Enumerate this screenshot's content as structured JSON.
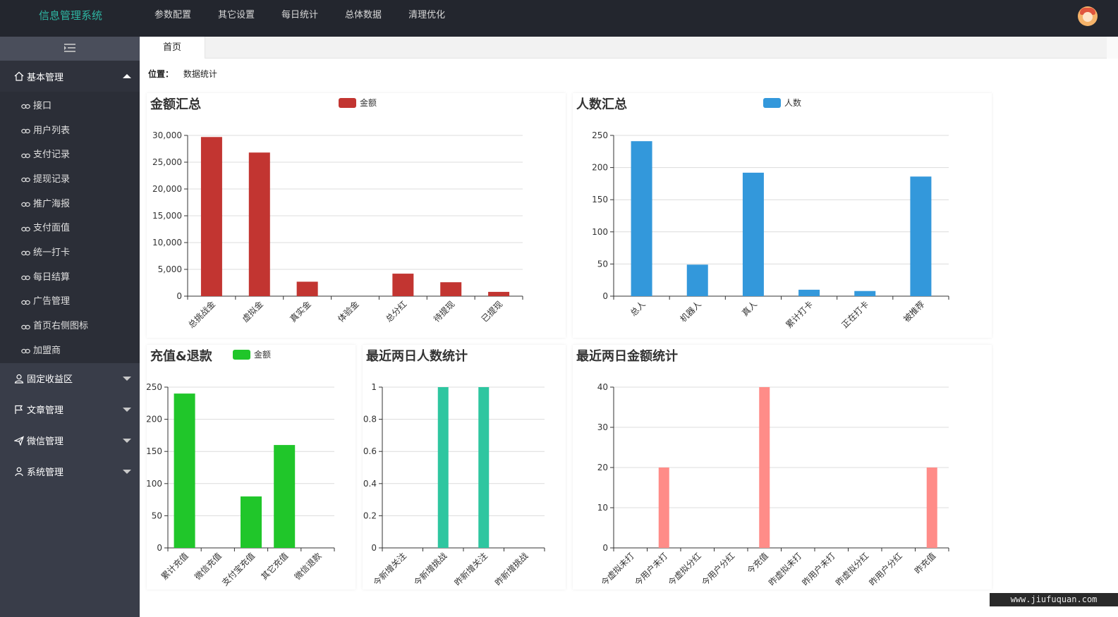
{
  "app": {
    "brand": "信息管理系统"
  },
  "topnav": [
    "参数配置",
    "其它设置",
    "每日统计",
    "总体数据",
    "清理优化"
  ],
  "sidebar": {
    "groups": [
      {
        "label": "基本管理",
        "icon": "home-icon",
        "open": true,
        "items": [
          "接口",
          "用户列表",
          "支付记录",
          "提现记录",
          "推广海报",
          "支付面值",
          "统一打卡",
          "每日结算",
          "广告管理",
          "首页右侧图标",
          "加盟商"
        ]
      },
      {
        "label": "固定收益区",
        "icon": "user-icon",
        "open": false,
        "items": []
      },
      {
        "label": "文章管理",
        "icon": "flag-icon",
        "open": false,
        "items": []
      },
      {
        "label": "微信管理",
        "icon": "send-icon",
        "open": false,
        "items": []
      },
      {
        "label": "系统管理",
        "icon": "person-icon",
        "open": false,
        "items": []
      }
    ]
  },
  "tab": {
    "label": "首页"
  },
  "breadcrumb": {
    "label": "位置：",
    "value": "数据统计"
  },
  "colors": {
    "red": "#c23531",
    "blue": "#3398db",
    "green": "#20c62a",
    "teal": "#2ec6a0",
    "pink": "#ff8c88"
  },
  "chart_data": [
    {
      "id": "amount",
      "type": "bar",
      "title": "金额汇总",
      "legend": "金额",
      "color": "#c23531",
      "categories": [
        "总挑战金",
        "虚拟金",
        "真实金",
        "体验金",
        "总分红",
        "待提现",
        "已提现"
      ],
      "values": [
        29700,
        26800,
        2700,
        0,
        4200,
        2600,
        800
      ],
      "ylim": [
        0,
        30000
      ],
      "yticks": [
        "0",
        "5,000",
        "10,000",
        "15,000",
        "20,000",
        "25,000",
        "30,000"
      ]
    },
    {
      "id": "people",
      "type": "bar",
      "title": "人数汇总",
      "legend": "人数",
      "color": "#3398db",
      "categories": [
        "总人",
        "机器人",
        "真人",
        "累计打卡",
        "正在打卡",
        "被推荐"
      ],
      "values": [
        241,
        49,
        192,
        10,
        8,
        186
      ],
      "ylim": [
        0,
        250
      ],
      "yticks": [
        "0",
        "50",
        "100",
        "150",
        "200",
        "250"
      ]
    },
    {
      "id": "recharge",
      "type": "bar",
      "title": "充值&退款",
      "legend": "金额",
      "color": "#20c62a",
      "categories": [
        "累计充值",
        "微信充值",
        "支付宝充值",
        "其它充值",
        "微信退款"
      ],
      "values": [
        240,
        0,
        80,
        160,
        0
      ],
      "ylim": [
        0,
        250
      ],
      "yticks": [
        "0",
        "50",
        "100",
        "150",
        "200",
        "250"
      ]
    },
    {
      "id": "twoday-people",
      "type": "bar",
      "title": "最近两日人数统计",
      "legend": "",
      "color": "#2ec6a0",
      "categories": [
        "今新增关注",
        "今新增挑战",
        "昨新增关注",
        "昨新增挑战"
      ],
      "values": [
        0,
        1,
        1,
        0
      ],
      "ylim": [
        0,
        1
      ],
      "yticks": [
        "0",
        "0.2",
        "0.4",
        "0.6",
        "0.8",
        "1"
      ]
    },
    {
      "id": "twoday-amount",
      "type": "bar",
      "title": "最近两日金额统计",
      "legend": "",
      "color": "#ff8c88",
      "categories": [
        "今虚拟未打",
        "今用户未打",
        "今虚拟分红",
        "今用户分红",
        "今充值",
        "昨虚拟未打",
        "昨用户未打",
        "昨虚拟分红",
        "昨用户分红",
        "昨充值"
      ],
      "values": [
        0,
        20,
        0,
        0,
        40,
        0,
        0,
        0,
        0,
        20
      ],
      "ylim": [
        0,
        40
      ],
      "yticks": [
        "0",
        "10",
        "20",
        "30",
        "40"
      ]
    }
  ],
  "watermark": "www.jiufuquan.com"
}
